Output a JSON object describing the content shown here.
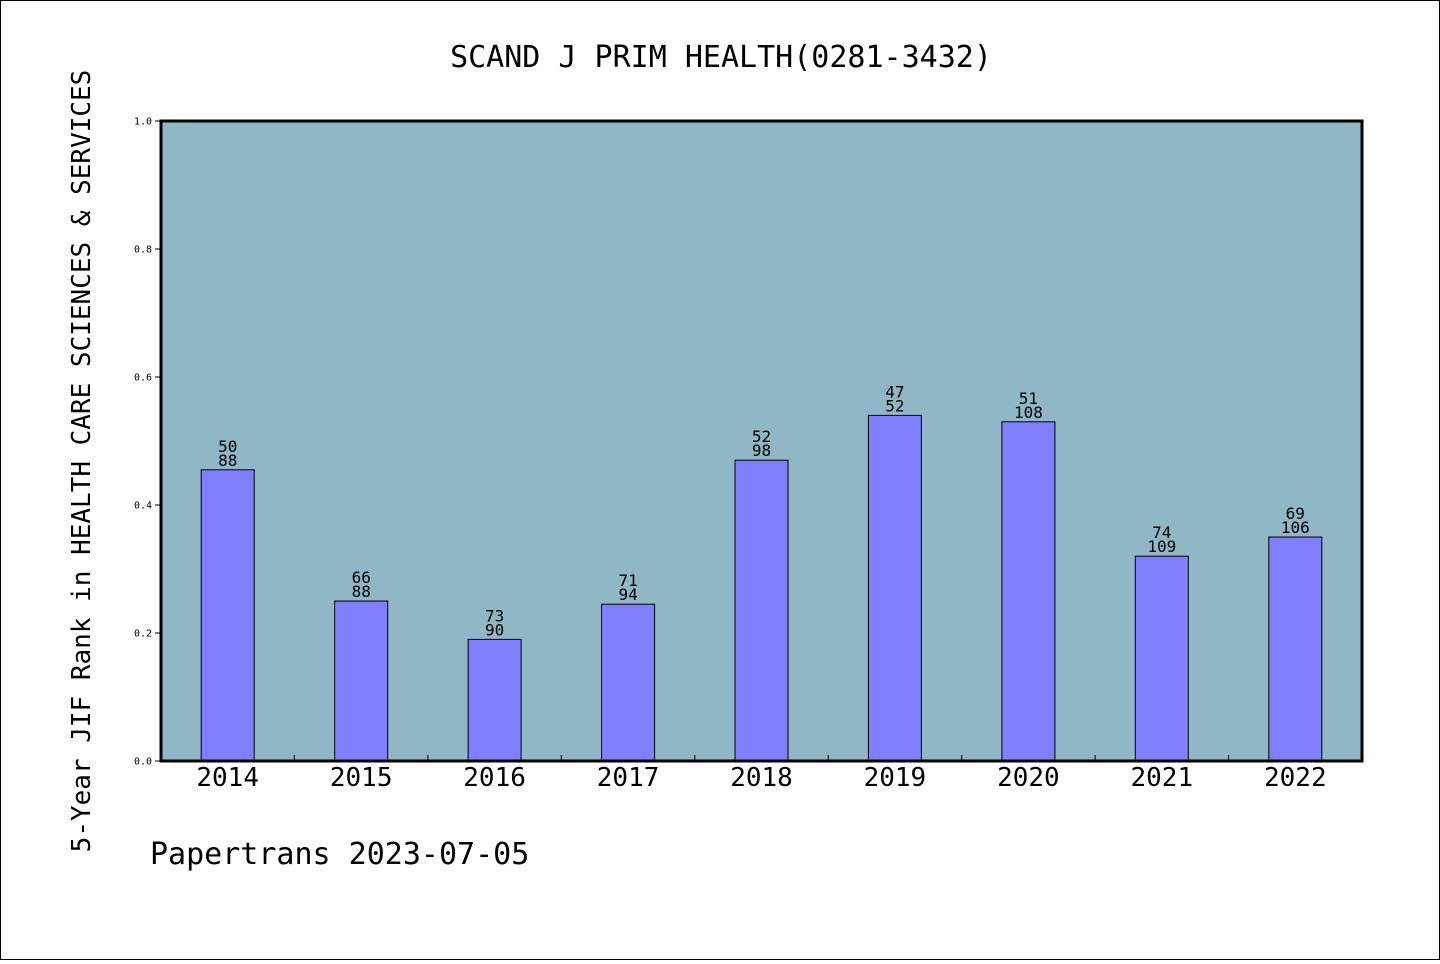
{
  "chart_data": {
    "type": "bar",
    "title": "SCAND J PRIM HEALTH(0281-3432)",
    "xlabel": "",
    "ylabel": "5-Year JIF Rank in HEALTH CARE SCIENCES & SERVICES",
    "ylim": [
      0,
      1.0
    ],
    "yticks": [
      "0.0",
      "0.2",
      "0.4",
      "0.6",
      "0.8",
      "1.0"
    ],
    "grid": false,
    "categories": [
      "2014",
      "2015",
      "2016",
      "2017",
      "2018",
      "2019",
      "2020",
      "2021",
      "2022"
    ],
    "values": [
      0.455,
      0.25,
      0.19,
      0.245,
      0.47,
      0.54,
      0.53,
      0.32,
      0.35
    ],
    "labels_top": [
      "50",
      "66",
      "73",
      "71",
      "52",
      "47",
      "51",
      "74",
      "69"
    ],
    "labels_bottom": [
      "88",
      "88",
      "90",
      "94",
      "98",
      "52",
      "108",
      "109",
      "106"
    ],
    "colors": {
      "plot_bg": "#8fb7c5",
      "bar": "#8080ff"
    }
  },
  "footer": {
    "text": "Papertrans 2023-07-05"
  }
}
